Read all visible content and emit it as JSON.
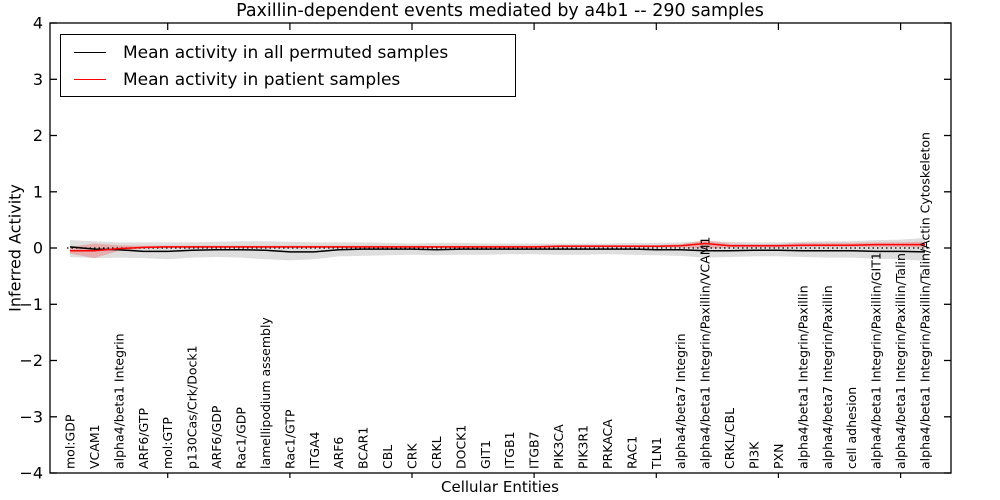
{
  "figure": {
    "title": "Paxillin-dependent events mediated by a4b1 -- 290 samples",
    "xlabel": "Cellular Entities",
    "ylabel": "Inferred Activity"
  },
  "legend": {
    "position": "upper left",
    "items": [
      {
        "label": "Mean activity in all permuted samples",
        "color": "#000000"
      },
      {
        "label": "Mean activity in patient samples",
        "color": "#ff0000"
      }
    ]
  },
  "chart_data": {
    "type": "line",
    "title": "Paxillin-dependent events mediated by a4b1 -- 290 samples",
    "xlabel": "Cellular Entities",
    "ylabel": "Inferred Activity",
    "ylim": [
      -4,
      4
    ],
    "ytick_values": [
      -4,
      -3,
      -2,
      -1,
      0,
      1,
      2,
      3,
      4
    ],
    "ytick_labels": [
      "−4",
      "−3",
      "−2",
      "−1",
      "0",
      "1",
      "2",
      "3",
      "4"
    ],
    "xtick_every": 5,
    "grid": false,
    "legend_position": "upper left",
    "zero_line": {
      "style": "dotted",
      "color": "#000000",
      "y": 0
    },
    "categories": [
      "mol:GDP",
      "VCAM1",
      "alpha4/beta1 Integrin",
      "ARF6/GTP",
      "mol:GTP",
      "p130Cas/Crk/Dock1",
      "ARF6/GDP",
      "Rac1/GDP",
      "lamellipodium assembly",
      "Rac1/GTP",
      "ITGA4",
      "ARF6",
      "BCAR1",
      "CBL",
      "CRK",
      "CRKL",
      "DOCK1",
      "GIT1",
      "ITGB1",
      "ITGB7",
      "PIK3CA",
      "PIK3R1",
      "PRKACA",
      "RAC1",
      "TLN1",
      "alpha4/beta7 Integrin",
      "alpha4/beta1 Integrin/Paxillin/VCAM1",
      "CRKL/CBL",
      "PI3K",
      "PXN",
      "alpha4/beta1 Integrin/Paxillin",
      "alpha4/beta7 Integrin/Paxillin",
      "cell adhesion",
      "alpha4/beta1 Integrin/Paxillin/GIT1",
      "alpha4/beta1 Integrin/Paxillin/Talin",
      "alpha4/beta1 Integrin/Paxillin/Talin/Actin Cytoskeleton"
    ],
    "series": [
      {
        "name": "Mean activity in all permuted samples",
        "color": "#000000",
        "band_color": "#000000",
        "band_opacity": 0.13,
        "values": [
          0.02,
          -0.02,
          -0.03,
          -0.06,
          -0.06,
          -0.04,
          -0.03,
          -0.03,
          -0.04,
          -0.07,
          -0.07,
          -0.03,
          -0.02,
          -0.02,
          -0.02,
          -0.03,
          -0.02,
          -0.02,
          -0.02,
          -0.02,
          -0.02,
          -0.02,
          -0.02,
          -0.02,
          -0.03,
          -0.03,
          -0.05,
          -0.05,
          -0.04,
          -0.04,
          -0.05,
          -0.05,
          -0.05,
          -0.06,
          -0.06,
          -0.07
        ],
        "band_lower": [
          -0.16,
          -0.18,
          -0.17,
          -0.18,
          -0.2,
          -0.17,
          -0.16,
          -0.17,
          -0.2,
          -0.22,
          -0.2,
          -0.15,
          -0.14,
          -0.13,
          -0.12,
          -0.13,
          -0.12,
          -0.12,
          -0.11,
          -0.11,
          -0.12,
          -0.12,
          -0.11,
          -0.12,
          -0.13,
          -0.14,
          -0.17,
          -0.16,
          -0.15,
          -0.15,
          -0.16,
          -0.17,
          -0.17,
          -0.19,
          -0.2,
          -0.23
        ],
        "band_upper": [
          0.14,
          0.12,
          0.1,
          0.1,
          0.1,
          0.1,
          0.11,
          0.12,
          0.12,
          0.11,
          0.1,
          0.1,
          0.1,
          0.09,
          0.08,
          0.09,
          0.09,
          0.08,
          0.08,
          0.08,
          0.08,
          0.08,
          0.08,
          0.09,
          0.09,
          0.1,
          0.12,
          0.11,
          0.1,
          0.1,
          0.11,
          0.12,
          0.12,
          0.14,
          0.15,
          0.18
        ]
      },
      {
        "name": "Mean activity in patient samples",
        "color": "#ff0000",
        "band_color": "#ff0000",
        "band_opacity": 0.22,
        "values": [
          -0.05,
          -0.05,
          -0.01,
          0.01,
          0.02,
          0.02,
          0.02,
          0.02,
          0.02,
          0.02,
          0.02,
          0.02,
          0.02,
          0.02,
          0.02,
          0.02,
          0.02,
          0.02,
          0.02,
          0.02,
          0.03,
          0.03,
          0.03,
          0.03,
          0.03,
          0.04,
          0.08,
          0.04,
          0.04,
          0.04,
          0.05,
          0.05,
          0.05,
          0.06,
          0.06,
          0.06
        ],
        "band_lower": [
          -0.1,
          -0.18,
          -0.05,
          -0.01,
          0.0,
          0.0,
          0.0,
          0.0,
          0.0,
          0.0,
          0.0,
          0.0,
          0.0,
          0.0,
          0.0,
          0.0,
          0.0,
          0.0,
          0.0,
          0.0,
          0.01,
          0.01,
          0.01,
          0.01,
          0.01,
          0.01,
          -0.01,
          0.01,
          0.01,
          0.01,
          0.02,
          0.02,
          0.02,
          0.02,
          0.02,
          0.01
        ],
        "band_upper": [
          0.02,
          0.08,
          0.05,
          0.04,
          0.04,
          0.04,
          0.04,
          0.04,
          0.04,
          0.04,
          0.04,
          0.04,
          0.04,
          0.04,
          0.04,
          0.04,
          0.04,
          0.04,
          0.04,
          0.04,
          0.05,
          0.05,
          0.05,
          0.05,
          0.05,
          0.07,
          0.14,
          0.08,
          0.07,
          0.07,
          0.09,
          0.09,
          0.09,
          0.1,
          0.1,
          0.11
        ]
      }
    ]
  }
}
